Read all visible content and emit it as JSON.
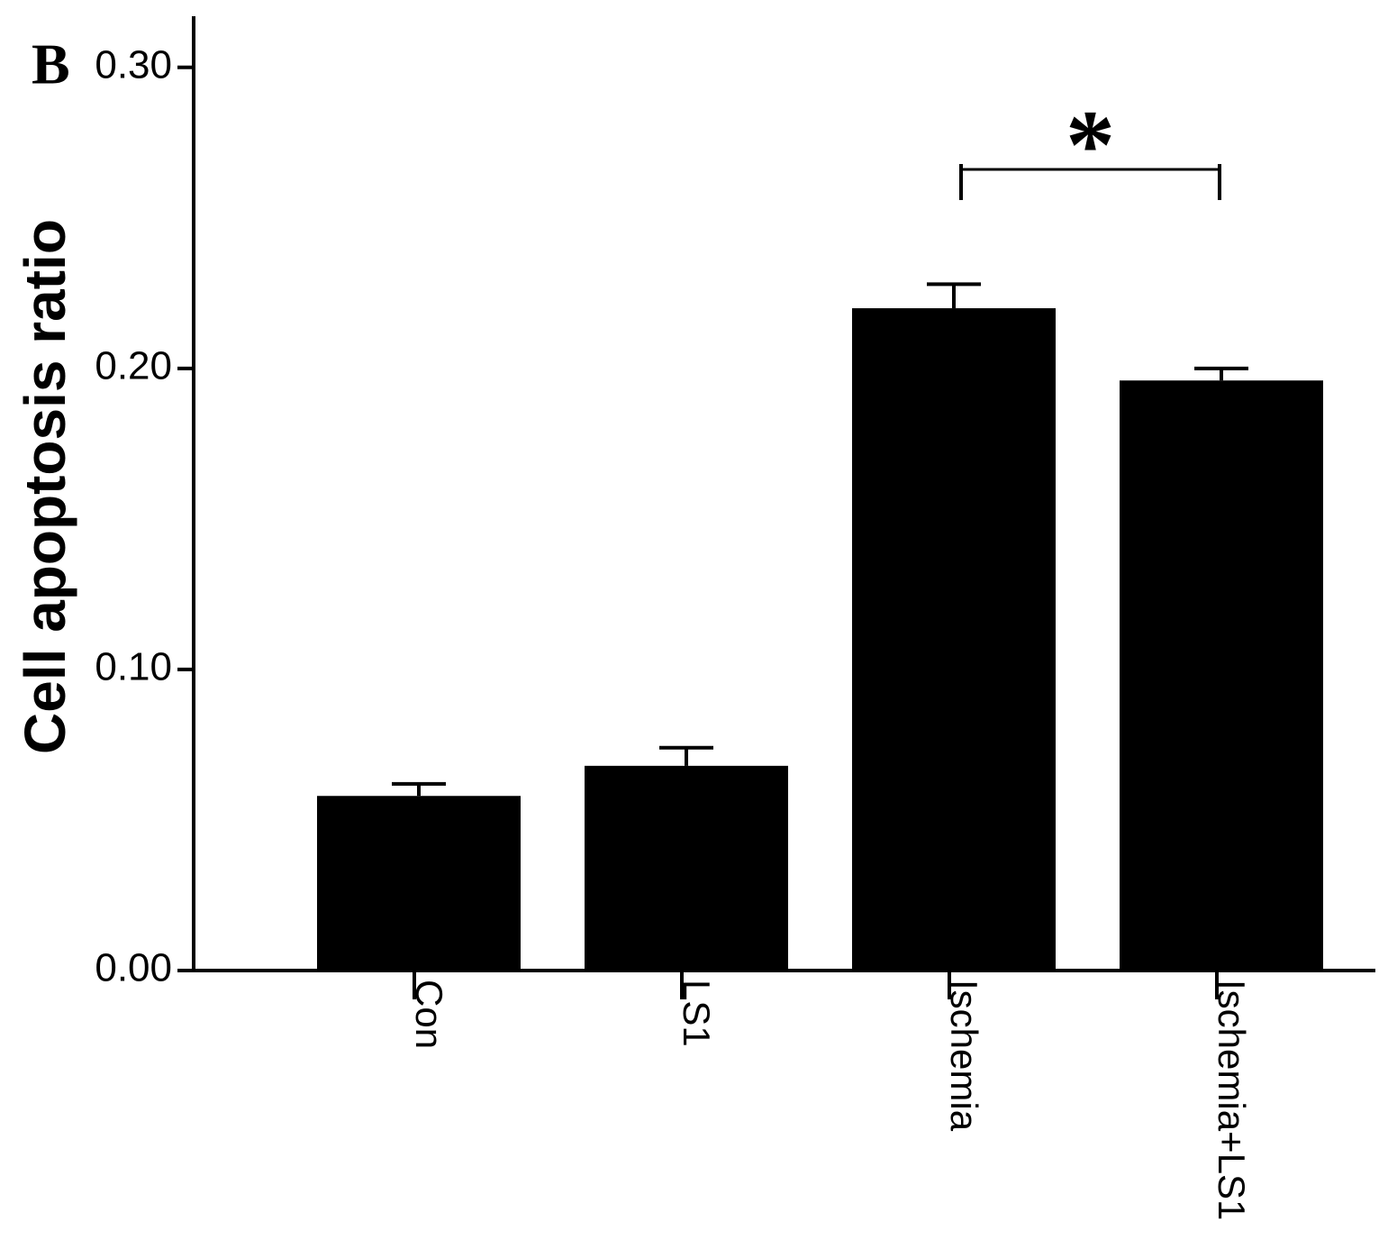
{
  "chart_data": {
    "type": "bar",
    "panel_label": "B",
    "ylabel": "Cell apoptosis ratio",
    "categories": [
      "Con",
      "LS1",
      "Ischemia",
      "Ischemia+LS1"
    ],
    "values": [
      0.058,
      0.068,
      0.22,
      0.196
    ],
    "errors": [
      0.004,
      0.006,
      0.008,
      0.004
    ],
    "color": "#000000",
    "ylim": [
      0,
      0.317
    ],
    "yticks": [
      {
        "value": 0,
        "label": "0.00"
      },
      {
        "value": 0.1,
        "label": "0.10"
      },
      {
        "value": 0.2,
        "label": "0.20"
      },
      {
        "value": 0.3,
        "label": "0.30"
      }
    ],
    "significance": [
      {
        "label": "*",
        "categories": [
          2,
          3
        ]
      }
    ]
  }
}
